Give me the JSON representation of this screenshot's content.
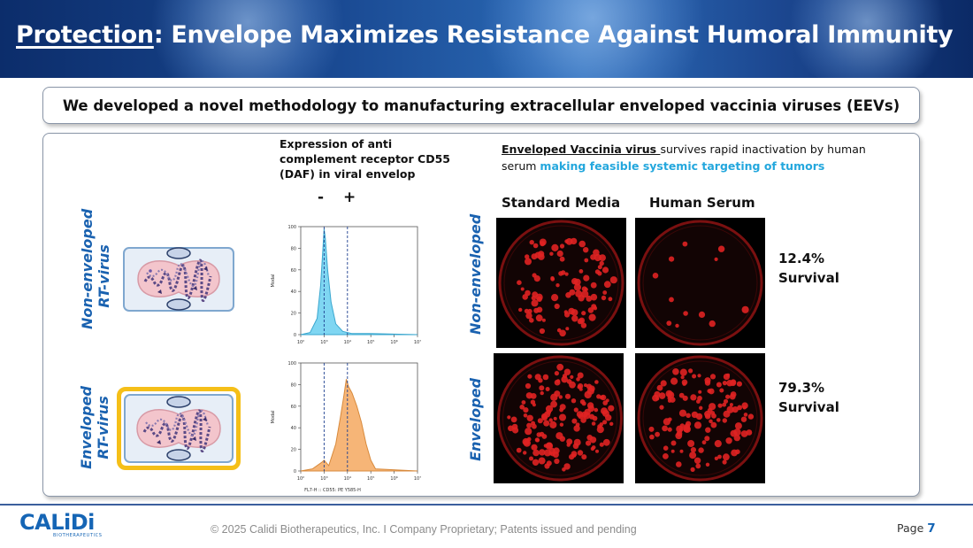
{
  "header": {
    "title_underlined": "Protection",
    "title_rest": ": Envelope Maximizes Resistance Against Humoral Immunity"
  },
  "banner": {
    "text": "We developed a novel methodology to manufacturing extracellular enveloped vaccinia viruses (EEVs)"
  },
  "left": {
    "row1_label_line1": "Non-enveloped",
    "row1_label_line2": "RT-virus",
    "row2_label_line1": "Enveloped",
    "row2_label_line2": "RT-virus"
  },
  "flow": {
    "caption": "Expression of anti complement receptor CD55 (DAF) in viral envelop",
    "minus": "-",
    "plus": "+",
    "ylabel": "Modal",
    "xlabel_bottom": "FL7-H :: CD55: PE Y585-H",
    "yticks": [
      "0",
      "20",
      "40",
      "60",
      "80",
      "100"
    ],
    "xticks": [
      "10²",
      "10³",
      "10⁴",
      "10⁵",
      "10⁶",
      "10⁷"
    ],
    "color_top": "#7fd6f2",
    "color_bottom": "#f6b577"
  },
  "chart_data": [
    {
      "type": "area",
      "title": "",
      "xlabel": "",
      "ylabel": "Modal",
      "xscale": "log",
      "xlim": [
        100,
        10000000
      ],
      "ylim": [
        0,
        100
      ],
      "series": [
        {
          "x_log10": [
            2.0,
            2.4,
            2.7,
            2.85,
            2.95,
            3.0,
            3.05,
            3.15,
            3.3,
            3.5,
            3.8,
            4.2,
            5.0,
            7.0
          ],
          "y": [
            0,
            2,
            15,
            45,
            80,
            98,
            90,
            60,
            30,
            10,
            3,
            1,
            1,
            0
          ]
        }
      ]
    },
    {
      "type": "area",
      "title": "",
      "xlabel": "FL7-H :: CD55: PE Y585-H",
      "ylabel": "Modal",
      "xscale": "log",
      "xlim": [
        100,
        10000000
      ],
      "ylim": [
        0,
        100
      ],
      "series": [
        {
          "x_log10": [
            2.0,
            2.5,
            2.9,
            3.0,
            3.2,
            3.5,
            3.7,
            3.85,
            3.95,
            4.05,
            4.2,
            4.4,
            4.6,
            4.8,
            5.0,
            5.2,
            7.0
          ],
          "y": [
            0,
            2,
            8,
            10,
            5,
            25,
            50,
            70,
            85,
            78,
            72,
            60,
            45,
            25,
            10,
            2,
            0
          ]
        }
      ]
    }
  ],
  "right": {
    "desc_underlined": "Enveloped Vaccinia virus ",
    "desc_bold": "survives rapid inactivation by human serum ",
    "desc_highlight": "making feasible systemic targeting of tumors",
    "col1": "Standard Media",
    "col2": "Human Serum",
    "row1_label": "Non-enveloped",
    "row2_label": "Enveloped",
    "survival1_value": "12.4%",
    "survival1_label": "Survival",
    "survival2_value": "79.3%",
    "survival2_label": "Survival",
    "plate_counts": {
      "nonenv_standard": 95,
      "nonenv_serum": 12,
      "env_standard": 150,
      "env_serum": 120
    }
  },
  "footer": {
    "logo_text": "CALiDi",
    "logo_sub": "BIOTHERAPEUTICS",
    "copyright": "© 2025 Calidi Biotherapeutics, Inc. I  Company Proprietary; Patents issued and pending",
    "page_label": "Page ",
    "page_number": "7"
  }
}
